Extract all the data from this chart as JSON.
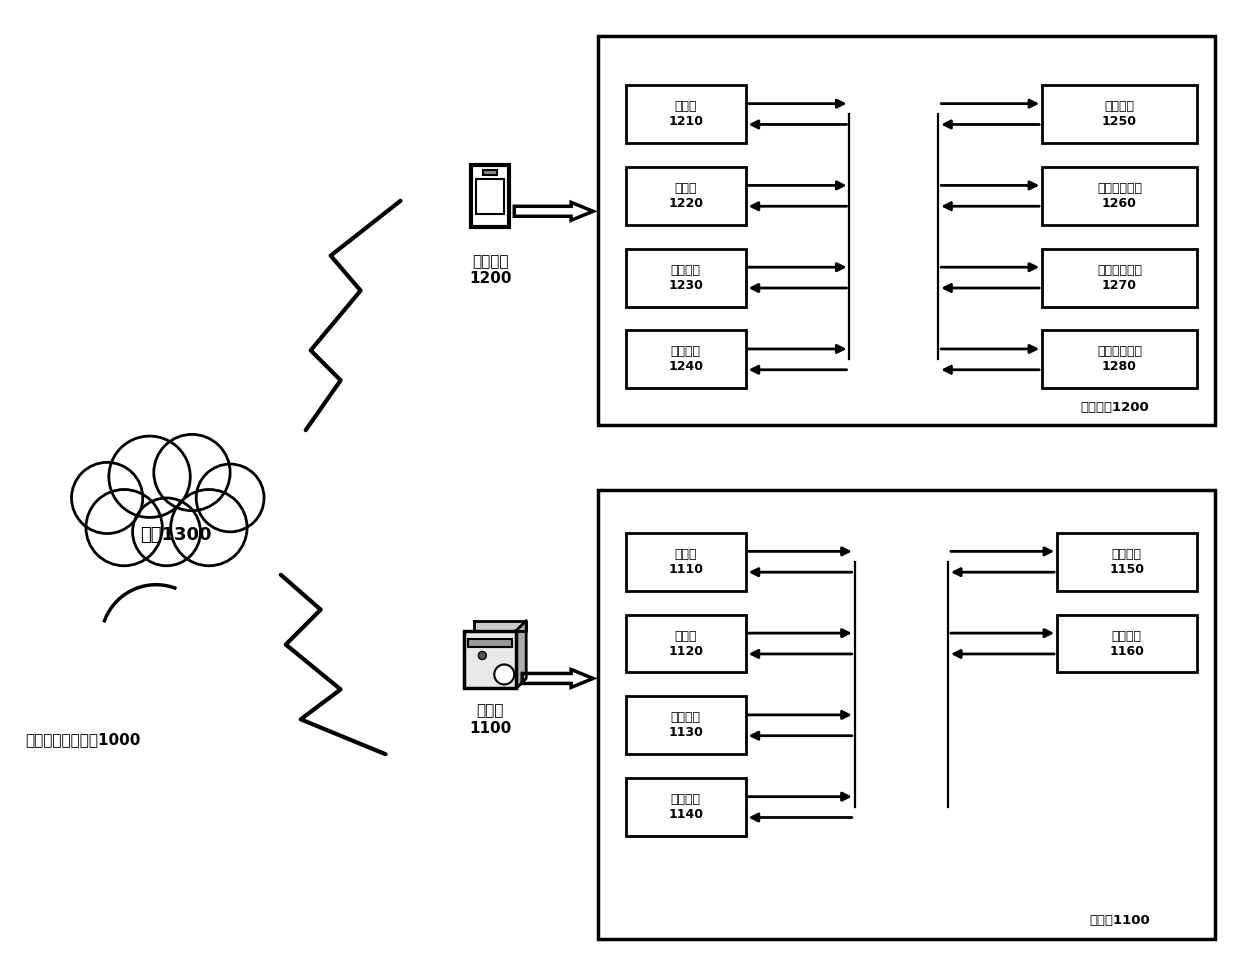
{
  "bg_color": "#ffffff",
  "title_system": "商户画像验证系统1000",
  "terminal_label": "终端设备\n1200",
  "server_label": "服务器\n1100",
  "network_label": "网络1300",
  "terminal_box_label": "终端设备1200",
  "server_box_label": "服务器1100",
  "terminal_left_boxes": [
    {
      "label": "处理器\n1210"
    },
    {
      "label": "存储器\n1220"
    },
    {
      "label": "接口装置\n1230"
    },
    {
      "label": "通信装置\n1240"
    }
  ],
  "terminal_right_boxes": [
    {
      "label": "显示装置\n1250"
    },
    {
      "label": "图像采集装置\n1260"
    },
    {
      "label": "音频输出装置\n1270"
    },
    {
      "label": "音频拾取装置\n1280"
    }
  ],
  "server_left_boxes": [
    {
      "label": "处理器\n1110"
    },
    {
      "label": "存储器\n1120"
    },
    {
      "label": "接口装置\n1130"
    },
    {
      "label": "通信装置\n1140"
    }
  ],
  "server_right_boxes": [
    {
      "label": "显示装置\n1150"
    },
    {
      "label": "输入装置\n1160"
    }
  ]
}
